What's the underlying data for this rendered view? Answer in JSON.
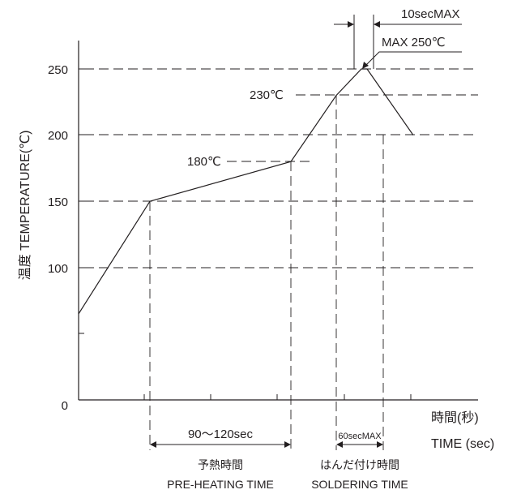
{
  "chart_data": {
    "type": "line",
    "title": "",
    "ylabel": "温度 TEMPERATURE(℃)",
    "xlabel_ja": "時間(秒)",
    "xlabel_en": "TIME (sec)",
    "ylim": [
      0,
      250
    ],
    "yticks": [
      "0",
      "100",
      "150",
      "200",
      "250"
    ],
    "grid": "dashed horizontal at 100, 150, 200, 230, 250",
    "series": [
      {
        "points": [
          [
            0,
            65
          ],
          [
            1,
            150
          ],
          [
            2,
            180
          ],
          [
            3,
            230
          ],
          [
            3.5,
            250
          ],
          [
            3.7,
            250
          ],
          [
            4.5,
            200
          ]
        ]
      }
    ],
    "annotations": {
      "peak_temp": "MAX 250℃",
      "peak_time": "10secMAX",
      "temp_230": "230℃",
      "temp_180": "180℃",
      "preheat_duration": "90〜120sec",
      "preheat_label_ja": "予熱時間",
      "preheat_label_en": "PRE-HEATING TIME",
      "solder_duration": "60secMAX",
      "solder_label_ja": "はんだ付け時間",
      "solder_label_en": "SOLDERING TIME"
    },
    "colors": {
      "line": "#231f20"
    }
  }
}
